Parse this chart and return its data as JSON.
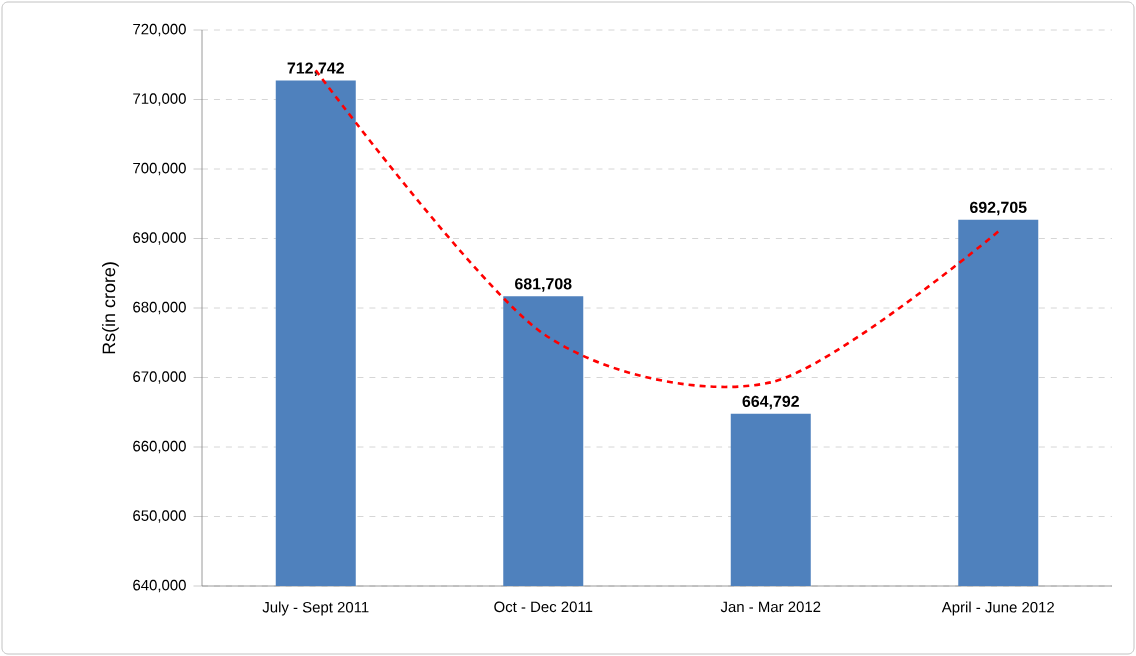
{
  "chart_data": {
    "type": "bar",
    "ylabel": "Rs(in crore)",
    "categories": [
      "July - Sept 2011",
      "Oct - Dec 2011",
      "Jan - Mar 2012",
      "April - June 2012"
    ],
    "series": [
      {
        "color": "#4f81bd",
        "values": [
          712742,
          681708,
          664792,
          692705
        ],
        "value_labels": [
          "712,742",
          "681,708",
          "664,792",
          "692,705"
        ]
      },
      {
        "type": "line",
        "color": "#ff0000",
        "line_style": "dashed",
        "marker": "none",
        "values": [
          714200,
          676300,
          669300,
          691000
        ]
      }
    ],
    "ylim": [
      640000,
      720000
    ],
    "yticks": [
      {
        "value": 640000,
        "label": "640,000"
      },
      {
        "value": 650000,
        "label": "650,000"
      },
      {
        "value": 660000,
        "label": "660,000"
      },
      {
        "value": 670000,
        "label": "670,000"
      },
      {
        "value": 680000,
        "label": "680,000"
      },
      {
        "value": 690000,
        "label": "690,000"
      },
      {
        "value": 700000,
        "label": "700,000"
      },
      {
        "value": 710000,
        "label": "710,000"
      },
      {
        "value": 720000,
        "label": "720,000"
      }
    ],
    "grid": "y"
  }
}
